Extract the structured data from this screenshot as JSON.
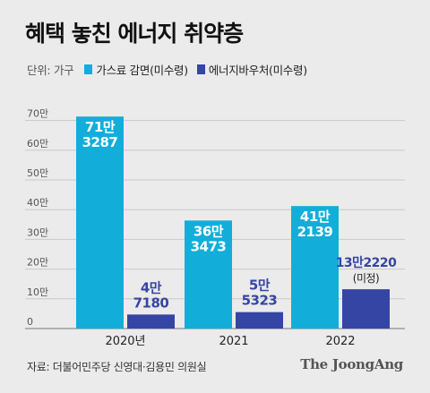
{
  "header": {
    "title": "혜택 놓친 에너지 취약층"
  },
  "legend": {
    "unit": "단위: 가구",
    "items": [
      {
        "label": "가스료 감면(미수령)",
        "color": "#12aed9"
      },
      {
        "label": "에너지바우처(미수령)",
        "color": "#3545a3"
      }
    ]
  },
  "chart_data": {
    "type": "bar",
    "title": "혜택 놓친 에너지 취약층",
    "unit": "단위: 가구",
    "categories": [
      "2020년",
      "2021",
      "2022"
    ],
    "series": [
      {
        "name": "가스료 감면(미수령)",
        "color": "#12aed9",
        "values": [
          713287,
          363473,
          412139
        ],
        "labels": [
          [
            "71만",
            "3287"
          ],
          [
            "36만",
            "3473"
          ],
          [
            "41만",
            "2139"
          ]
        ]
      },
      {
        "name": "에너지바우처(미수령)",
        "color": "#3545a3",
        "values": [
          47180,
          55323,
          132220
        ],
        "labels": [
          [
            "4만",
            "7180"
          ],
          [
            "5만",
            "5323"
          ],
          [
            "13만2220",
            "(미정)"
          ]
        ]
      }
    ],
    "y_ticks": [
      "0",
      "10만",
      "20만",
      "30만",
      "40만",
      "50만",
      "60만",
      "70만"
    ],
    "ylim": [
      0,
      750000
    ],
    "grid": true,
    "legend_position": "top-left"
  },
  "footer": {
    "source": "자료: 더불어민주당 신영대·김용민 의원실",
    "brand": "The JoongAng"
  }
}
